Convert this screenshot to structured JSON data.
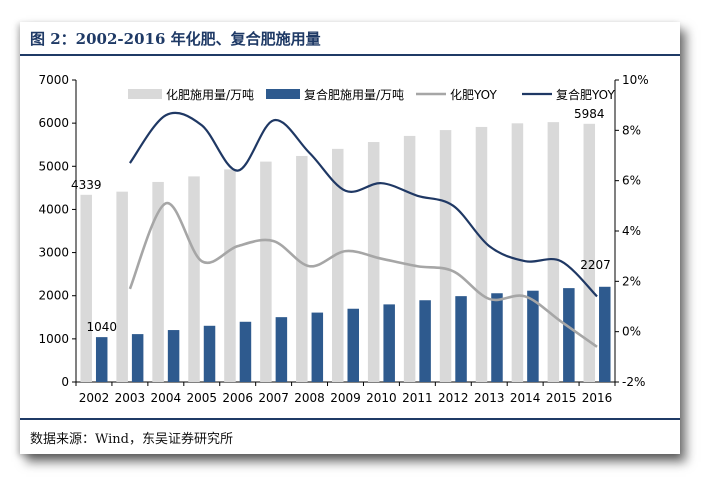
{
  "header": {
    "title": "图 2：2002-2016 年化肥、复合肥施用量"
  },
  "footer": {
    "source": "数据来源：Wind，东吴证券研究所"
  },
  "chart_data": {
    "type": "bar",
    "categories": [
      "2002",
      "2003",
      "2004",
      "2005",
      "2006",
      "2007",
      "2008",
      "2009",
      "2010",
      "2011",
      "2012",
      "2013",
      "2014",
      "2015",
      "2016"
    ],
    "y_left": {
      "range": [
        0,
        7000
      ],
      "ticks": [
        "0",
        "1000",
        "2000",
        "3000",
        "4000",
        "5000",
        "6000",
        "7000"
      ]
    },
    "y_right": {
      "range": [
        -2,
        10
      ],
      "ticks": [
        "-2%",
        "0%",
        "2%",
        "4%",
        "6%",
        "8%",
        "10%"
      ]
    },
    "series": [
      {
        "name": "化肥施用量/万吨",
        "kind": "bar",
        "axis": "left",
        "color": "#d9d9d9",
        "values": [
          4339,
          4412,
          4637,
          4766,
          4928,
          5108,
          5239,
          5404,
          5562,
          5704,
          5839,
          5912,
          5996,
          6023,
          5984
        ]
      },
      {
        "name": "复合肥施用量/万吨",
        "kind": "bar",
        "axis": "left",
        "color": "#2e5a8e",
        "values": [
          1040,
          1110,
          1204,
          1303,
          1396,
          1503,
          1609,
          1698,
          1799,
          1895,
          1990,
          2057,
          2116,
          2176,
          2207
        ]
      },
      {
        "name": "化肥YOY",
        "kind": "line",
        "axis": "right",
        "color": "#a6a6a6",
        "values": [
          null,
          1.7,
          5.1,
          2.8,
          3.4,
          3.6,
          2.6,
          3.2,
          2.9,
          2.6,
          2.4,
          1.3,
          1.4,
          0.4,
          -0.6
        ]
      },
      {
        "name": "复合肥YOY",
        "kind": "line",
        "axis": "right",
        "color": "#1f3864",
        "values": [
          null,
          6.7,
          8.6,
          8.2,
          6.4,
          8.4,
          7.1,
          5.6,
          5.9,
          5.4,
          5.0,
          3.4,
          2.8,
          2.8,
          1.4
        ]
      }
    ],
    "data_labels": [
      {
        "series": 0,
        "index": 0,
        "text": "4339"
      },
      {
        "series": 0,
        "index": 14,
        "text": "5984"
      },
      {
        "series": 1,
        "index": 0,
        "text": "1040"
      },
      {
        "series": 1,
        "index": 14,
        "text": "2207"
      }
    ],
    "legend_position": "top",
    "grid": false
  }
}
